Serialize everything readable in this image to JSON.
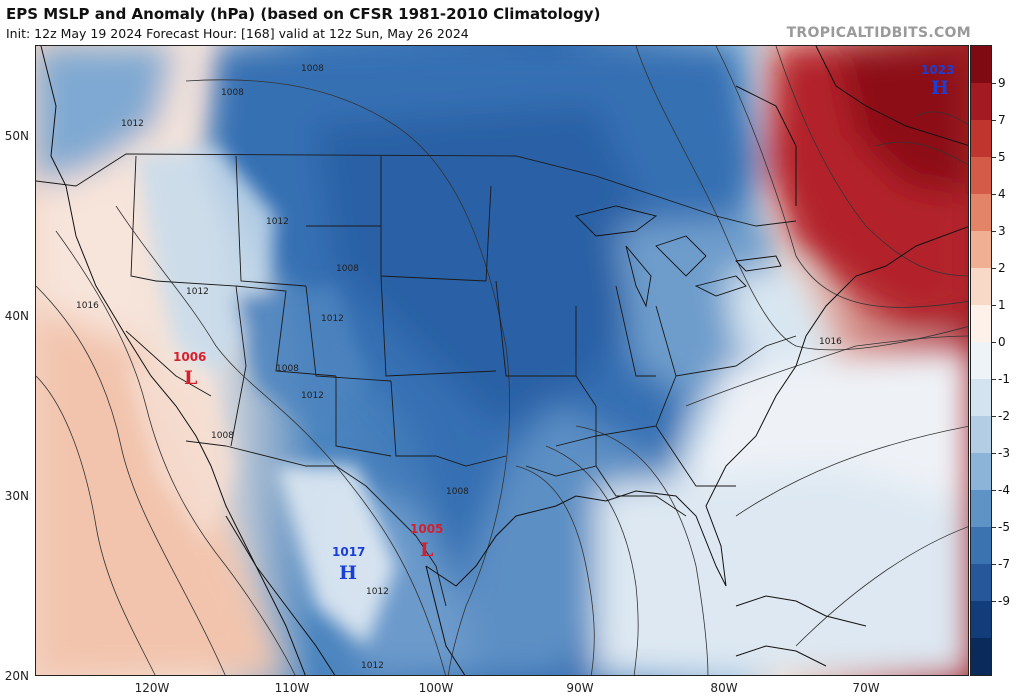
{
  "header": {
    "title": "EPS MSLP and Anomaly (hPa) (based on CFSR 1981-2010 Climatology)",
    "subtitle": "Init: 12z May 19 2024   Forecast Hour: [168]   valid at 12z Sun, May 26 2024",
    "credit": "TROPICALTIDBITS.COM"
  },
  "axes": {
    "lat_labels": [
      "50N",
      "40N",
      "30N",
      "20N"
    ],
    "lon_labels": [
      "120W",
      "110W",
      "100W",
      "90W",
      "80W",
      "70W"
    ]
  },
  "colorbar": {
    "ticks": [
      "9",
      "7",
      "5",
      "4",
      "3",
      "2",
      "1",
      "0",
      "-1",
      "-2",
      "-3",
      "-4",
      "-5",
      "-7",
      "-9"
    ],
    "colors": [
      "#7f0a12",
      "#a31a22",
      "#c0362e",
      "#d45b48",
      "#e38468",
      "#f0ae93",
      "#f8d8c7",
      "#fdf1ea",
      "#eef3f8",
      "#d3e3ef",
      "#b2cde4",
      "#8cb4d8",
      "#5f93c5",
      "#3b72b0",
      "#25579a",
      "#123d7a",
      "#0a2a5c"
    ]
  },
  "pressure_centers": [
    {
      "type": "H",
      "value": "1023",
      "color": "#1a3fd6"
    },
    {
      "type": "L",
      "value": "1006",
      "color": "#d4202c"
    },
    {
      "type": "L",
      "value": "1005",
      "color": "#d4202c"
    },
    {
      "type": "H",
      "value": "1017",
      "color": "#1a3fd6"
    }
  ],
  "isobar_labels": [
    "1008",
    "1008",
    "1012",
    "1012",
    "1012",
    "1008",
    "1016",
    "1012",
    "1008",
    "1012",
    "1008",
    "1008",
    "1012",
    "1016",
    "1012"
  ]
}
